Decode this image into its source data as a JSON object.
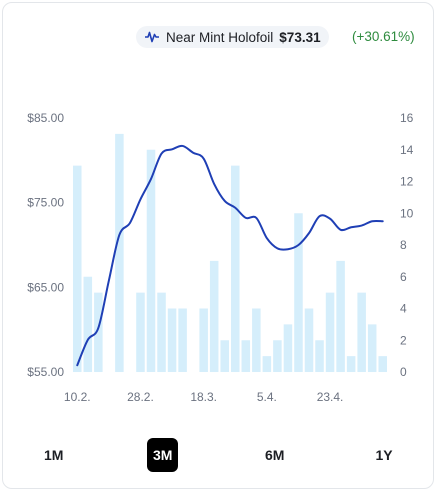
{
  "legend": {
    "label": "Near Mint Holofoil",
    "price": "$73.31",
    "change": "(+30.61%)",
    "line_color": "#1f3fb5",
    "bar_color": "#d5eefb",
    "icon": "line-chart-icon"
  },
  "ranges": [
    {
      "label": "1M",
      "active": false
    },
    {
      "label": "3M",
      "active": true
    },
    {
      "label": "6M",
      "active": false
    },
    {
      "label": "1Y",
      "active": false
    }
  ],
  "chart_data": {
    "type": "bar+line",
    "title": "",
    "xlabel": "",
    "ylabel": "",
    "x_ticks": [
      "10.2.",
      "28.2.",
      "18.3.",
      "5.4.",
      "23.4."
    ],
    "left_axis": {
      "ticks": [
        "$85.00",
        "$75.00",
        "$65.00",
        "$55.00"
      ],
      "range": [
        55,
        85
      ]
    },
    "right_axis": {
      "ticks": [
        "16",
        "14",
        "12",
        "10",
        "8",
        "6",
        "4",
        "2",
        "0"
      ],
      "range": [
        0,
        16
      ]
    },
    "grid": true,
    "bars": [
      13,
      6,
      5,
      null,
      15,
      null,
      5,
      14,
      5,
      4,
      4,
      null,
      4,
      7,
      2,
      13,
      2,
      4,
      1,
      2,
      3,
      10,
      4,
      2,
      5,
      7,
      1,
      5,
      3,
      1
    ],
    "line_price": [
      55.8,
      58.8,
      60.2,
      65.8,
      71.2,
      72.6,
      75.4,
      77.8,
      80.8,
      81.3,
      81.7,
      80.9,
      80.2,
      77.2,
      75.2,
      74.4,
      73.2,
      73.2,
      70.8,
      69.6,
      69.5,
      70.0,
      71.4,
      73.4,
      73.1,
      71.8,
      72.1,
      72.3,
      72.8,
      72.8
    ]
  }
}
